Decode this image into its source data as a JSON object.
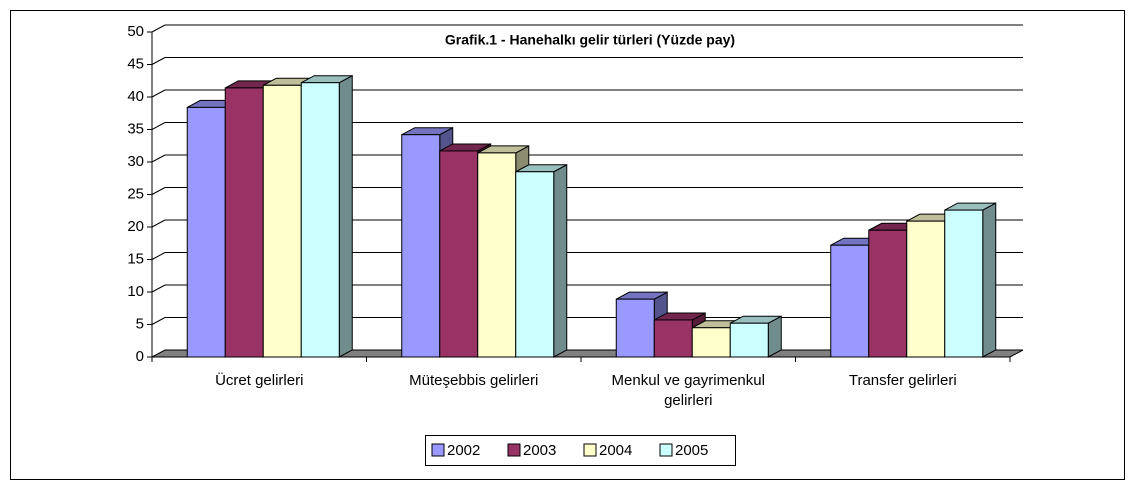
{
  "chart_data": {
    "type": "bar3d",
    "title": "Grafik.1 - Hanehalkı gelir türleri (Yüzde pay)",
    "categories": [
      "Ücret gelirleri",
      "Müteşebbis gelirleri",
      "Menkul ve gayrimenkul gelirleri",
      "Transfer gelirleri"
    ],
    "series": [
      {
        "name": "2002",
        "color": "#9999ff",
        "values": [
          38.4,
          34.2,
          8.9,
          17.2
        ]
      },
      {
        "name": "2003",
        "color": "#993366",
        "values": [
          41.4,
          31.7,
          5.7,
          19.5
        ]
      },
      {
        "name": "2004",
        "color": "#ffffcc",
        "values": [
          41.8,
          31.4,
          4.5,
          20.9
        ]
      },
      {
        "name": "2005",
        "color": "#ccffff",
        "values": [
          42.2,
          28.5,
          5.2,
          22.6
        ]
      }
    ],
    "ylim": [
      0,
      50
    ],
    "yticks": [
      0,
      5,
      10,
      15,
      20,
      25,
      30,
      35,
      40,
      45,
      50
    ],
    "grid": true,
    "legend": "bottom"
  }
}
